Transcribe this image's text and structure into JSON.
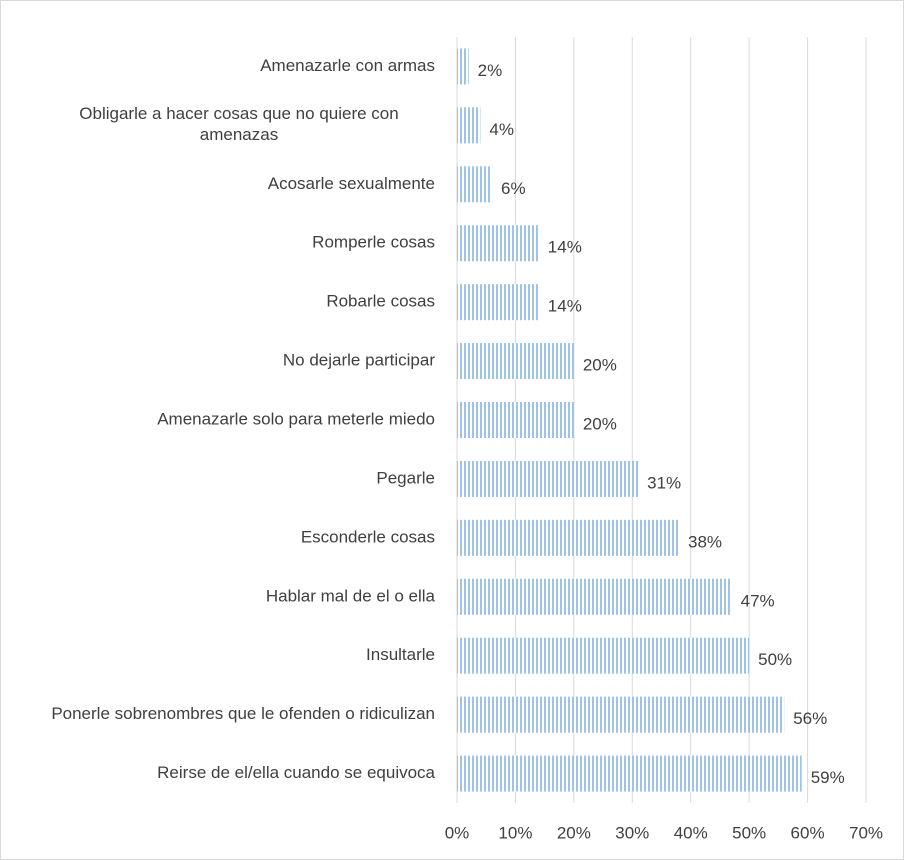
{
  "chart_data": {
    "type": "bar",
    "orientation": "horizontal",
    "categories": [
      "Amenazarle con armas",
      "Obligarle a hacer cosas que no quiere con amenazas",
      "Acosarle sexualmente",
      "Romperle cosas",
      "Robarle cosas",
      "No dejarle participar",
      "Amenazarle solo para meterle miedo",
      "Pegarle",
      "Esconderle cosas",
      "Hablar mal de el o ella",
      "Insultarle",
      "Ponerle sobrenombres que le ofenden o ridiculizan",
      "Reirse de el/ella cuando se equivoca"
    ],
    "values": [
      2,
      4,
      6,
      14,
      14,
      20,
      20,
      31,
      38,
      47,
      50,
      56,
      59
    ],
    "value_labels": [
      "2%",
      "4%",
      "6%",
      "14%",
      "14%",
      "20%",
      "20%",
      "31%",
      "38%",
      "47%",
      "50%",
      "56%",
      "59%"
    ],
    "color": "#9dc3e6",
    "xlim": [
      0,
      70
    ],
    "xticks": [
      {
        "value": 0,
        "label": "0%"
      },
      {
        "value": 10,
        "label": "10%"
      },
      {
        "value": 20,
        "label": "20%"
      },
      {
        "value": 30,
        "label": "30%"
      },
      {
        "value": 40,
        "label": "40%"
      },
      {
        "value": 50,
        "label": "50%"
      },
      {
        "value": 60,
        "label": "60%"
      },
      {
        "value": 70,
        "label": "70%"
      }
    ],
    "grid": true
  }
}
